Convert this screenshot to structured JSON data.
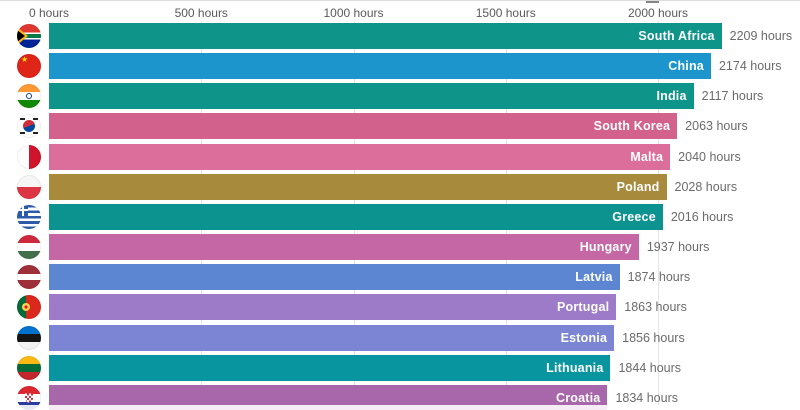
{
  "axis": {
    "unit": "hours",
    "ticks": [
      {
        "value": 0,
        "label": "0 hours"
      },
      {
        "value": 500,
        "label": "500 hours"
      },
      {
        "value": 1000,
        "label": "1000 hours"
      },
      {
        "value": 1500,
        "label": "1500 hours"
      },
      {
        "value": 2000,
        "label": "2000 hours"
      }
    ]
  },
  "chart_data": {
    "type": "bar",
    "orientation": "horizontal",
    "title": "",
    "xlabel": "hours",
    "ylabel": "",
    "xlim": [
      0,
      2467
    ],
    "grid": true,
    "legend": "none",
    "rows": [
      {
        "rank": 1,
        "country": "South Africa",
        "value": 2209,
        "value_label": "2209 hours",
        "color": "#0e9488",
        "flag": "flag-south-africa"
      },
      {
        "rank": 2,
        "country": "China",
        "value": 2174,
        "value_label": "2174 hours",
        "color": "#1b95cc",
        "flag": "flag-china"
      },
      {
        "rank": 3,
        "country": "India",
        "value": 2117,
        "value_label": "2117 hours",
        "color": "#0e9488",
        "flag": "flag-india"
      },
      {
        "rank": 4,
        "country": "South Korea",
        "value": 2063,
        "value_label": "2063 hours",
        "color": "#d2628b",
        "flag": "flag-south-korea"
      },
      {
        "rank": 5,
        "country": "Malta",
        "value": 2040,
        "value_label": "2040 hours",
        "color": "#dc6e9b",
        "flag": "flag-malta"
      },
      {
        "rank": 6,
        "country": "Poland",
        "value": 2028,
        "value_label": "2028 hours",
        "color": "#a78a3c",
        "flag": "flag-poland"
      },
      {
        "rank": 7,
        "country": "Greece",
        "value": 2016,
        "value_label": "2016 hours",
        "color": "#0c9390",
        "flag": "flag-greece"
      },
      {
        "rank": 8,
        "country": "Hungary",
        "value": 1937,
        "value_label": "1937 hours",
        "color": "#c566a5",
        "flag": "flag-hungary"
      },
      {
        "rank": 9,
        "country": "Latvia",
        "value": 1874,
        "value_label": "1874 hours",
        "color": "#5c86d2",
        "flag": "flag-latvia"
      },
      {
        "rank": 10,
        "country": "Portugal",
        "value": 1863,
        "value_label": "1863 hours",
        "color": "#9d7bc8",
        "flag": "flag-portugal"
      },
      {
        "rank": 11,
        "country": "Estonia",
        "value": 1856,
        "value_label": "1856 hours",
        "color": "#7b85d3",
        "flag": "flag-estonia"
      },
      {
        "rank": 12,
        "country": "Lithuania",
        "value": 1844,
        "value_label": "1844 hours",
        "color": "#0895a0",
        "flag": "flag-lithuania"
      },
      {
        "rank": 13,
        "country": "Croatia",
        "value": 1834,
        "value_label": "1834 hours",
        "color": "#a867ab",
        "flag": "flag-croatia"
      }
    ]
  },
  "colors": {
    "grid_line": "#e4e4e4",
    "axis_text": "#5a5a5a",
    "value_text": "#6b6b6b",
    "bar_label_text": "#ffffff"
  }
}
